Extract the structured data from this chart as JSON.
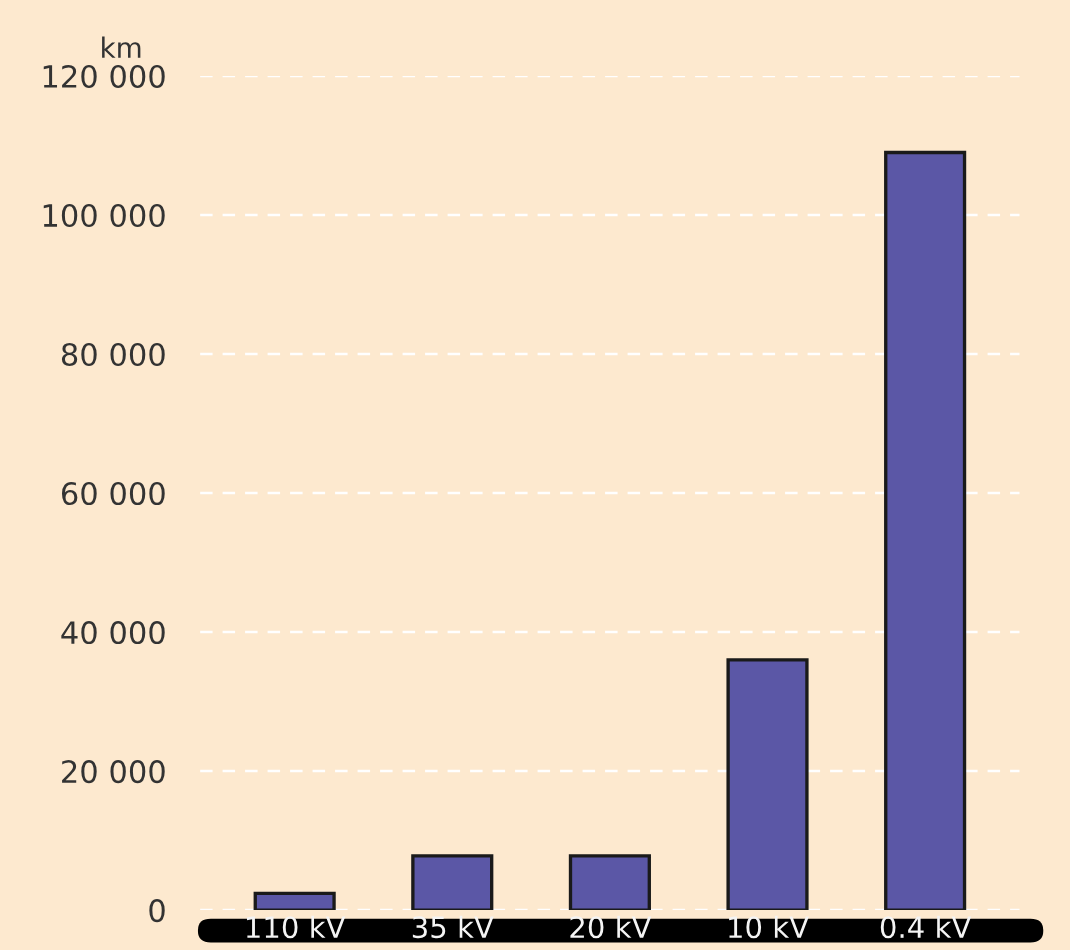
{
  "chart_data": {
    "type": "bar",
    "ylabel": "km",
    "categories": [
      "110 kV",
      "35 kV",
      "20 kV",
      "10 kV",
      "0.4 kV"
    ],
    "values": [
      2400,
      7800,
      7800,
      36000,
      109000
    ],
    "color": "#5b57a6",
    "ylim": [
      0,
      120000
    ],
    "yticks": [
      0,
      {
        "value": 20000,
        "label": "20 000"
      },
      {
        "value": 40000,
        "label": "40 000"
      },
      {
        "value": 60000,
        "label": "60 000"
      },
      {
        "value": 80000,
        "label": "80 000"
      },
      {
        "value": 100000,
        "label": "100 000"
      },
      {
        "value": 120000,
        "label": "120 000"
      }
    ],
    "grid": "y"
  }
}
